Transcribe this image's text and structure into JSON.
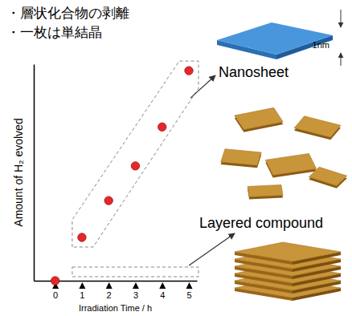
{
  "header": {
    "bullets": [
      "・層状化合物の剥離",
      "・一枚は単結晶"
    ],
    "sheet_thickness_label": "1nm"
  },
  "chart_data": {
    "type": "scatter",
    "x": [
      0,
      1,
      2,
      3,
      4,
      5
    ],
    "values": [
      0,
      20,
      37,
      53,
      71,
      97
    ],
    "color": "#e8262a",
    "marker": "circle",
    "xlim": [
      -0.8,
      5.3
    ],
    "ylim": [
      0,
      100
    ],
    "xticks": [
      0,
      1,
      2,
      3,
      4,
      5
    ],
    "tick_labels": "x",
    "x_label": "Irradiation Time / h",
    "y_label": "Amount of H₂ evolved",
    "annotations": [
      "Nanosheet",
      "Layered compound"
    ]
  }
}
